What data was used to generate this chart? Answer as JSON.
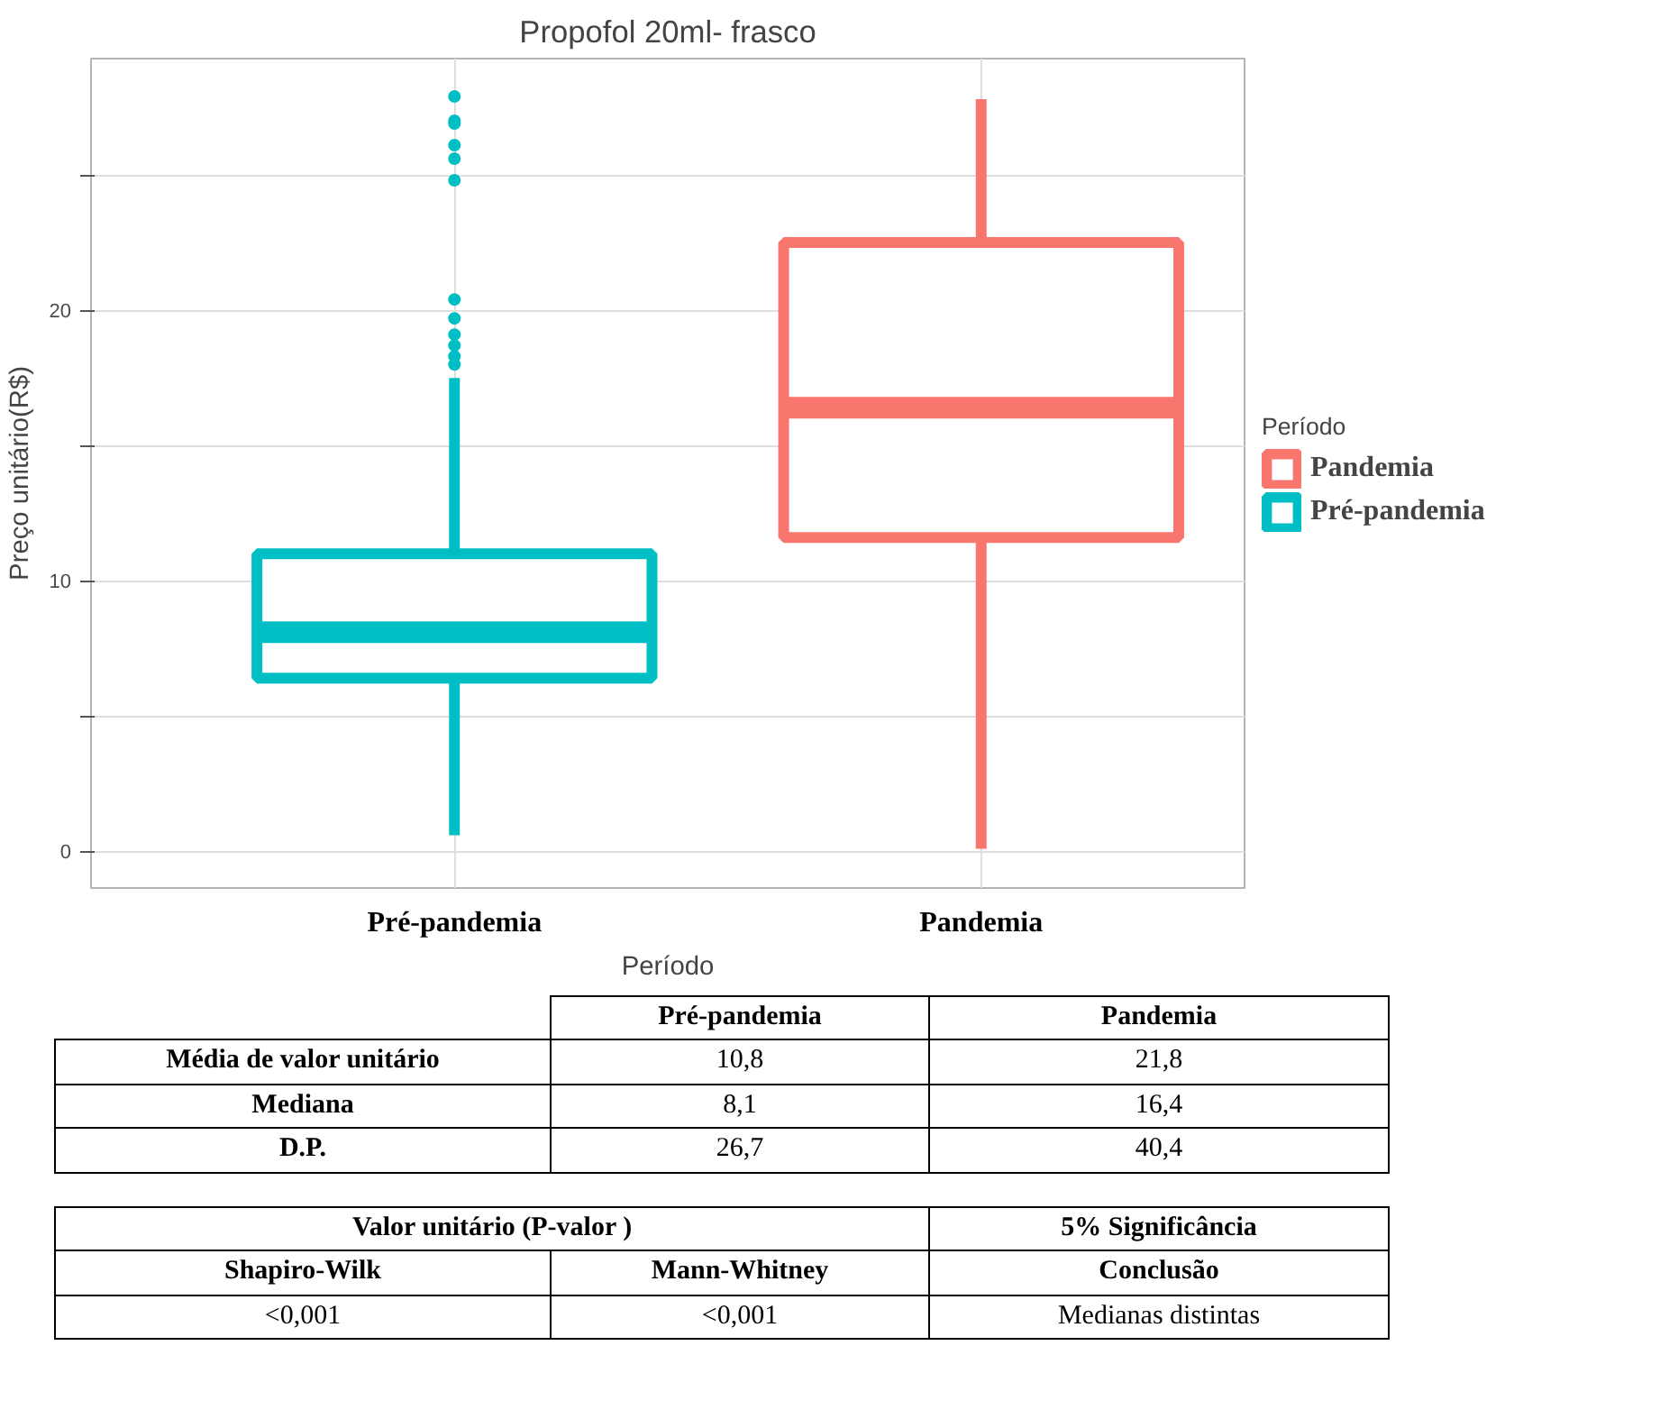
{
  "chart_data": {
    "type": "box",
    "title": "Propofol 20ml- frasco",
    "xlabel": "Período",
    "ylabel": "Preço unitário(R$)",
    "legend_title": "Período",
    "categories": [
      "Pré-pandemia",
      "Pandemia"
    ],
    "series": [
      {
        "name": "Pandemia",
        "color": "#f8766d",
        "boxes": [
          null,
          {
            "low": 0.1,
            "q1": 11.6,
            "median": 16.4,
            "q3": 22.5,
            "high": 27.8
          }
        ]
      },
      {
        "name": "Pré-pandemia",
        "color": "#00bfc4",
        "boxes": [
          {
            "low": 0.6,
            "q1": 6.4,
            "median": 8.1,
            "q3": 11.0,
            "high": 17.5,
            "outliers": [
              18.0,
              18.3,
              18.7,
              19.1,
              19.7,
              20.4,
              24.8,
              25.6,
              26.1,
              26.9,
              27.0,
              27.9
            ]
          },
          null
        ]
      }
    ],
    "ylim": [
      -1.35,
      29.3
    ],
    "yticks": [
      0,
      {
        "value": 5,
        "label": null
      },
      10,
      {
        "value": 15,
        "label": null
      },
      20,
      {
        "value": 25,
        "label": null
      }
    ],
    "grid": true,
    "legend": "right",
    "annotations": [
      "Pré-pandemia",
      "Pandemia",
      "Média de valor unitário",
      "10,8",
      "21,8",
      "Mediana",
      "8,1",
      "16,4",
      "D.P.",
      "26,7",
      "40,4",
      "Valor unitário (P-valor )",
      "5% Significância",
      "Shapiro-Wilk",
      "Mann-Whitney",
      "Conclusão",
      "<0,001",
      "<0,001",
      "Medianas distintas"
    ]
  }
}
